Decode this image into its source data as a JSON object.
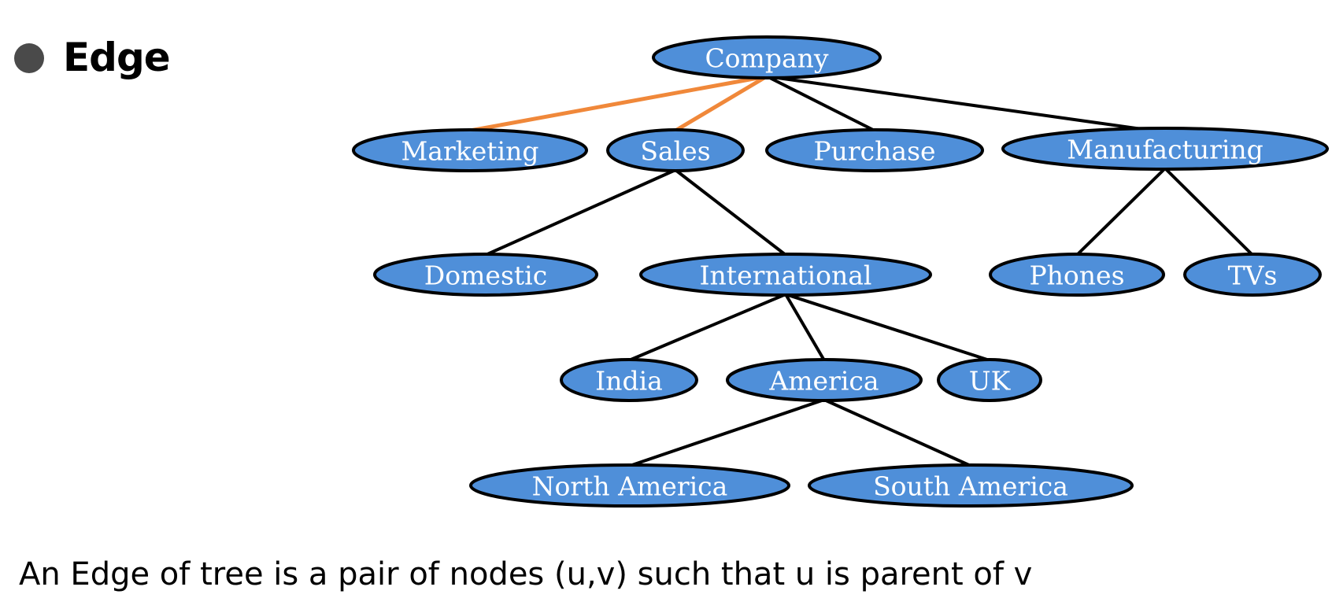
{
  "heading": "Edge",
  "caption": "An Edge of tree is a pair of nodes (u,v) such that u is parent of v",
  "colors": {
    "node_fill": "#4f8fd9",
    "node_stroke": "#000000",
    "edge": "#000000",
    "highlight_edge": "#f0883a",
    "bullet": "#4a4a4a"
  },
  "tree": {
    "nodes": [
      {
        "id": "company",
        "label": "Company",
        "level": 0
      },
      {
        "id": "marketing",
        "label": "Marketing",
        "level": 1
      },
      {
        "id": "sales",
        "label": "Sales",
        "level": 1
      },
      {
        "id": "purchase",
        "label": "Purchase",
        "level": 1
      },
      {
        "id": "manufacturing",
        "label": "Manufacturing",
        "level": 1
      },
      {
        "id": "domestic",
        "label": "Domestic",
        "level": 2
      },
      {
        "id": "international",
        "label": "International",
        "level": 2
      },
      {
        "id": "phones",
        "label": "Phones",
        "level": 2
      },
      {
        "id": "tvs",
        "label": "TVs",
        "level": 2
      },
      {
        "id": "india",
        "label": "India",
        "level": 3
      },
      {
        "id": "america",
        "label": "America",
        "level": 3
      },
      {
        "id": "uk",
        "label": "UK",
        "level": 3
      },
      {
        "id": "north-america",
        "label": "North America",
        "level": 4
      },
      {
        "id": "south-america",
        "label": "South America",
        "level": 4
      }
    ],
    "edges": [
      {
        "from": "company",
        "to": "marketing",
        "highlighted": true
      },
      {
        "from": "company",
        "to": "sales",
        "highlighted": true
      },
      {
        "from": "company",
        "to": "purchase",
        "highlighted": false
      },
      {
        "from": "company",
        "to": "manufacturing",
        "highlighted": false
      },
      {
        "from": "sales",
        "to": "domestic",
        "highlighted": false
      },
      {
        "from": "sales",
        "to": "international",
        "highlighted": false
      },
      {
        "from": "manufacturing",
        "to": "phones",
        "highlighted": false
      },
      {
        "from": "manufacturing",
        "to": "tvs",
        "highlighted": false
      },
      {
        "from": "international",
        "to": "india",
        "highlighted": false
      },
      {
        "from": "international",
        "to": "america",
        "highlighted": false
      },
      {
        "from": "international",
        "to": "uk",
        "highlighted": false
      },
      {
        "from": "america",
        "to": "north-america",
        "highlighted": false
      },
      {
        "from": "america",
        "to": "south-america",
        "highlighted": false
      }
    ]
  }
}
